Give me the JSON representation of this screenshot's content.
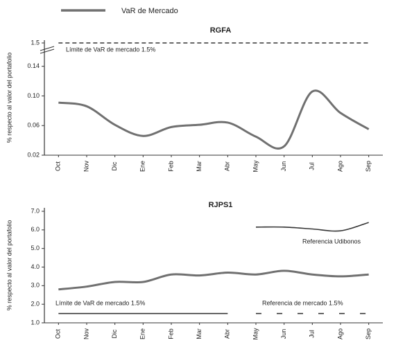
{
  "chart_data": [
    {
      "type": "line",
      "title": "RGFA",
      "ylabel": "% respecto al valor del portafolio",
      "categories": [
        "Oct",
        "Nov",
        "Dic",
        "Ene",
        "Feb",
        "Mar",
        "Abr",
        "May",
        "Jun",
        "Jul",
        "Ago",
        "Sep"
      ],
      "ylim": [
        0.02,
        0.15
      ],
      "yticks": [
        0.02,
        0.06,
        {
          "value": 0.1,
          "label": "0.10"
        },
        0.14,
        1.5
      ],
      "series": [
        {
          "name": "VaR de Mercado",
          "color": "#707070",
          "values": [
            0.091,
            0.086,
            0.061,
            0.046,
            0.058,
            0.061,
            0.064,
            0.045,
            0.032,
            0.106,
            0.077,
            0.055
          ]
        },
        {
          "name": "Límite de VaR de mercado 1.5%",
          "color": "#333333",
          "dash": true,
          "values": [
            1.5,
            1.5,
            1.5,
            1.5,
            1.5,
            1.5,
            1.5,
            1.5,
            1.5,
            1.5,
            1.5,
            1.5
          ]
        }
      ]
    },
    {
      "type": "line",
      "title": "RJPS1",
      "ylabel": "% respecto al valor del portafolio",
      "categories": [
        "Oct",
        "Nov",
        "Dic",
        "Ene",
        "Feb",
        "Mar",
        "Abr",
        "May",
        "Jun",
        "Jul",
        "Ago",
        "Sep"
      ],
      "ylim": [
        1.0,
        7.0
      ],
      "yticks": [
        {
          "value": 1,
          "label": "1.0"
        },
        {
          "value": 2,
          "label": "2.0"
        },
        {
          "value": 3,
          "label": "3.0"
        },
        {
          "value": 4,
          "label": "4.0"
        },
        {
          "value": 5,
          "label": "5.0"
        },
        {
          "value": 6,
          "label": "6.0"
        },
        {
          "value": 7,
          "label": "7.0"
        }
      ],
      "series": [
        {
          "color": "#707070",
          "values": [
            2.8,
            2.95,
            3.2,
            3.2,
            3.6,
            3.55,
            3.7,
            3.6,
            3.8,
            3.6,
            3.5,
            3.6
          ]
        },
        {
          "name": "Referencia Udibonos",
          "color": "#333333",
          "values": [
            null,
            null,
            null,
            null,
            null,
            null,
            null,
            6.15,
            6.15,
            6.05,
            5.95,
            6.4
          ]
        },
        {
          "name": "Límite de VaR de mercado 1.5%",
          "color": "#333333",
          "values": [
            1.5,
            1.5,
            1.5,
            1.5,
            1.5,
            1.5,
            1.5,
            null,
            null,
            null,
            null,
            null
          ]
        },
        {
          "name": "Referencia de mercado 1.5%",
          "color": "#333333",
          "dash": true,
          "values": [
            null,
            null,
            null,
            null,
            null,
            null,
            null,
            1.5,
            1.5,
            1.5,
            1.5,
            1.5
          ]
        }
      ]
    }
  ]
}
